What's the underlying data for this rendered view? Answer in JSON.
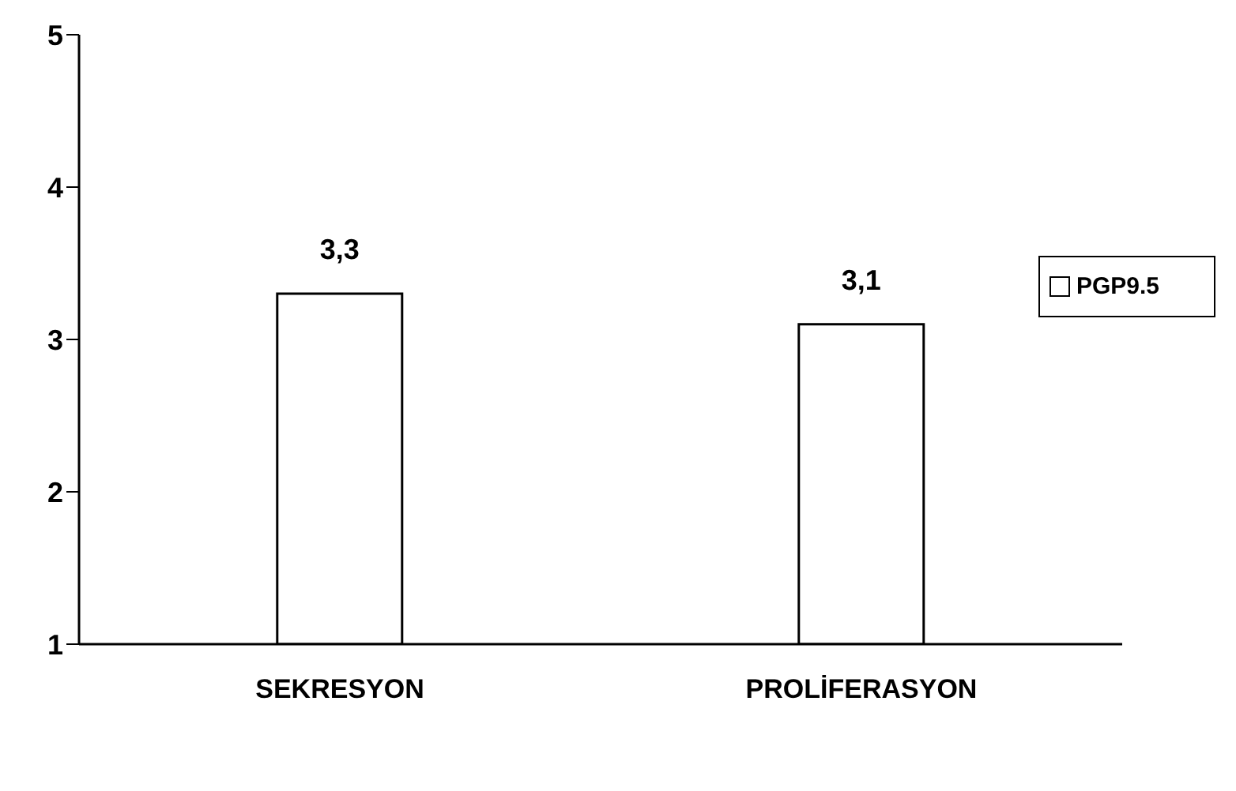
{
  "chart_data": {
    "type": "bar",
    "categories": [
      "SEKRESYON",
      "PROLİFERASYON"
    ],
    "series": [
      {
        "name": "PGP9.5",
        "color": "#ffffff",
        "values": [
          3.3,
          3.1
        ],
        "value_labels": [
          "3,3",
          "3,1"
        ]
      }
    ],
    "ylim": [
      1,
      5
    ],
    "yticks": [
      1,
      2,
      3,
      4,
      5
    ],
    "grid": false,
    "legend": "right"
  }
}
